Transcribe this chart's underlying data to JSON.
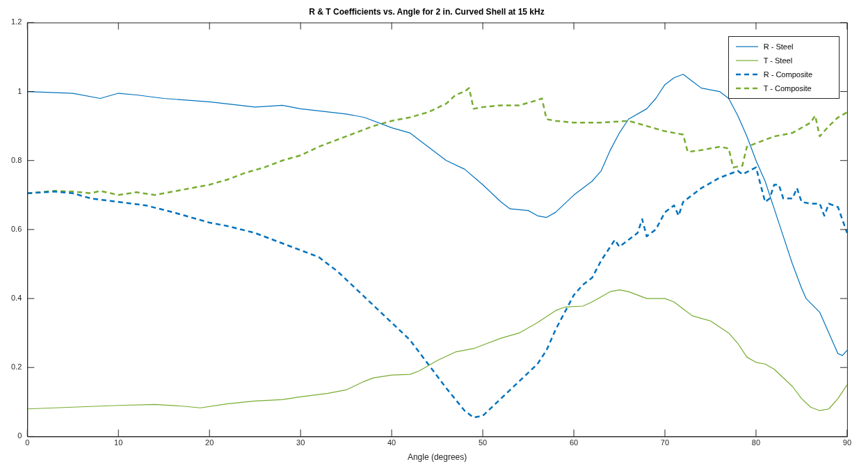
{
  "chart_data": {
    "type": "line",
    "title": "R & T Coefficients vs. Angle for 2 in. Curved Shell at 15 kHz",
    "xlabel": "Angle (degrees)",
    "xlim": [
      0,
      90
    ],
    "xticks": [
      0,
      10,
      20,
      30,
      40,
      50,
      60,
      70,
      80,
      90
    ],
    "ylim": [
      0,
      1.2
    ],
    "yticks": [
      0,
      0.2,
      0.4,
      0.6,
      0.8,
      1,
      1.2
    ],
    "grid": false,
    "legend": "top right",
    "marker": "none",
    "series": [
      {
        "name": "R - Steel",
        "color": "#0072bd",
        "line_style": "solid",
        "x": [
          0,
          5,
          8,
          10,
          12,
          15,
          20,
          25,
          28,
          30,
          35,
          37,
          40,
          42,
          44,
          46,
          48,
          50,
          52,
          53,
          55,
          56,
          57,
          58,
          60,
          62,
          63,
          64,
          65,
          66,
          68,
          69,
          70,
          71,
          72,
          73,
          74,
          76,
          77,
          78,
          79,
          80,
          81,
          82,
          83,
          84,
          85,
          85.5,
          87,
          88,
          89,
          89.5,
          90
        ],
        "values": [
          1.0,
          0.995,
          0.98,
          0.995,
          0.99,
          0.98,
          0.97,
          0.955,
          0.96,
          0.95,
          0.935,
          0.925,
          0.895,
          0.88,
          0.84,
          0.8,
          0.775,
          0.73,
          0.68,
          0.66,
          0.655,
          0.64,
          0.635,
          0.65,
          0.7,
          0.74,
          0.77,
          0.83,
          0.88,
          0.92,
          0.95,
          0.98,
          1.02,
          1.04,
          1.05,
          1.03,
          1.01,
          1.0,
          0.98,
          0.93,
          0.87,
          0.8,
          0.74,
          0.66,
          0.58,
          0.5,
          0.43,
          0.4,
          0.36,
          0.3,
          0.24,
          0.235,
          0.25
        ]
      },
      {
        "name": "T - Steel",
        "color": "#77ac30",
        "line_style": "solid",
        "x": [
          0,
          5,
          10,
          14,
          17,
          19,
          22,
          25,
          28,
          30,
          33,
          35,
          37,
          38,
          40,
          42,
          43,
          45,
          47,
          49,
          50,
          52,
          54,
          56,
          58,
          59,
          61,
          62,
          64,
          65,
          66,
          68,
          70,
          71,
          72,
          73,
          75,
          77,
          78,
          79,
          80,
          81,
          82,
          84,
          85,
          86,
          87,
          88,
          89,
          90
        ],
        "values": [
          0.08,
          0.085,
          0.09,
          0.093,
          0.088,
          0.083,
          0.095,
          0.103,
          0.107,
          0.115,
          0.125,
          0.135,
          0.16,
          0.17,
          0.178,
          0.18,
          0.19,
          0.22,
          0.245,
          0.255,
          0.265,
          0.285,
          0.3,
          0.33,
          0.365,
          0.375,
          0.378,
          0.39,
          0.42,
          0.425,
          0.42,
          0.4,
          0.4,
          0.39,
          0.37,
          0.35,
          0.335,
          0.3,
          0.27,
          0.23,
          0.215,
          0.21,
          0.195,
          0.145,
          0.11,
          0.085,
          0.075,
          0.08,
          0.11,
          0.15
        ]
      },
      {
        "name": "R - Composite",
        "color": "#0072bd",
        "line_style": "dashed",
        "x": [
          0,
          3,
          5,
          7,
          10,
          13,
          16,
          18,
          20,
          22,
          25,
          28,
          30,
          32,
          34,
          36,
          38,
          40,
          42,
          44,
          46,
          48,
          49,
          50,
          52,
          54,
          56,
          57,
          58,
          59,
          60,
          61,
          62,
          63,
          64,
          64.5,
          65,
          66,
          67,
          67.5,
          68,
          69,
          70,
          71,
          71.5,
          72,
          74,
          76,
          78,
          78.5,
          80,
          80.5,
          81,
          81.5,
          82,
          82.5,
          83,
          84,
          84.5,
          85,
          86,
          87,
          87.5,
          88,
          89,
          90
        ],
        "values": [
          0.705,
          0.71,
          0.705,
          0.69,
          0.68,
          0.67,
          0.65,
          0.635,
          0.62,
          0.61,
          0.59,
          0.56,
          0.54,
          0.52,
          0.48,
          0.43,
          0.38,
          0.33,
          0.28,
          0.21,
          0.14,
          0.075,
          0.055,
          0.06,
          0.11,
          0.16,
          0.21,
          0.25,
          0.31,
          0.36,
          0.41,
          0.44,
          0.46,
          0.51,
          0.55,
          0.57,
          0.55,
          0.57,
          0.59,
          0.63,
          0.58,
          0.6,
          0.65,
          0.67,
          0.64,
          0.68,
          0.72,
          0.75,
          0.77,
          0.76,
          0.78,
          0.73,
          0.68,
          0.69,
          0.73,
          0.73,
          0.69,
          0.69,
          0.72,
          0.68,
          0.675,
          0.675,
          0.64,
          0.675,
          0.665,
          0.59
        ]
      },
      {
        "name": "T - Composite",
        "color": "#77ac30",
        "line_style": "dashed",
        "x": [
          0,
          3,
          5,
          7,
          8,
          10,
          12,
          14,
          16,
          18,
          20,
          22,
          24,
          26,
          28,
          30,
          32,
          34,
          36,
          38,
          40,
          42,
          44,
          46,
          47,
          48,
          48.5,
          49,
          50,
          52,
          54,
          56,
          56.5,
          57,
          58,
          60,
          63,
          66,
          68,
          70,
          72,
          72.5,
          74,
          76,
          77,
          77.5,
          78.5,
          79,
          80,
          82,
          84,
          86,
          86.5,
          87,
          88,
          89,
          90
        ],
        "values": [
          0.705,
          0.712,
          0.71,
          0.705,
          0.712,
          0.7,
          0.708,
          0.7,
          0.71,
          0.72,
          0.73,
          0.745,
          0.765,
          0.78,
          0.8,
          0.815,
          0.84,
          0.86,
          0.88,
          0.9,
          0.915,
          0.925,
          0.94,
          0.965,
          0.99,
          1.0,
          1.01,
          0.95,
          0.955,
          0.96,
          0.96,
          0.975,
          0.98,
          0.92,
          0.915,
          0.91,
          0.91,
          0.915,
          0.9,
          0.885,
          0.875,
          0.825,
          0.83,
          0.84,
          0.835,
          0.78,
          0.785,
          0.84,
          0.85,
          0.87,
          0.88,
          0.91,
          0.93,
          0.87,
          0.9,
          0.925,
          0.94
        ]
      }
    ]
  }
}
